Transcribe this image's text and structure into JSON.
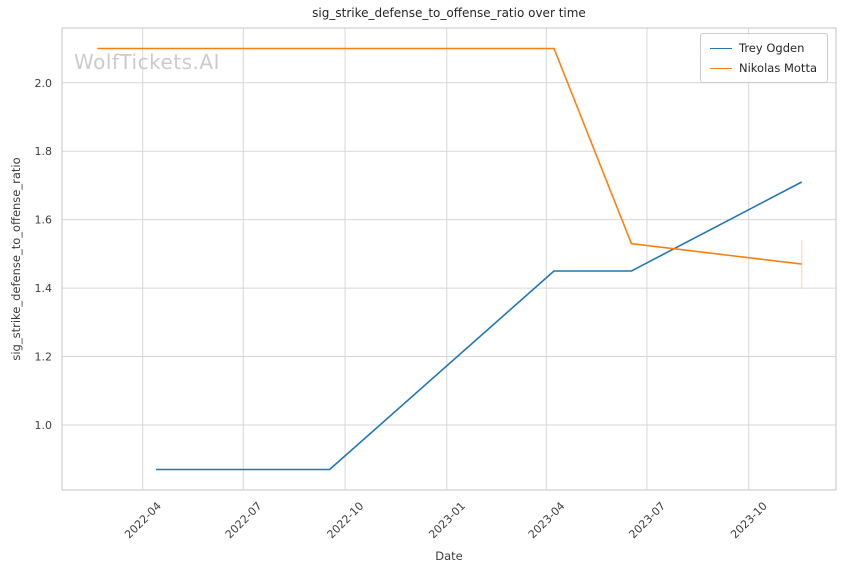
{
  "chart": {
    "title": "sig_strike_defense_to_offense_ratio over time",
    "xlabel": "Date",
    "ylabel": "sig_strike_defense_to_offense_ratio",
    "watermark": "WolfTickets.AI"
  },
  "chart_data": {
    "type": "line",
    "title": "sig_strike_defense_to_offense_ratio over time",
    "xlabel": "Date",
    "ylabel": "sig_strike_defense_to_offense_ratio",
    "grid": true,
    "legend_position": "upper right",
    "x_tick_labels": [
      "2022-04",
      "2022-07",
      "2022-10",
      "2023-01",
      "2023-04",
      "2023-07",
      "2023-10"
    ],
    "x_tick_dates": [
      "2022-04-01",
      "2022-07-01",
      "2022-10-01",
      "2023-01-01",
      "2023-04-01",
      "2023-07-01",
      "2023-10-01"
    ],
    "y_ticks": [
      1.0,
      1.2,
      1.4,
      1.6,
      1.8,
      2.0
    ],
    "y_tick_labels": [
      "1.0",
      "1.2",
      "1.4",
      "1.6",
      "1.8",
      "2.0"
    ],
    "xlim": [
      "2022-01-18",
      "2023-12-19"
    ],
    "ylim": [
      0.81,
      2.16
    ],
    "series": [
      {
        "name": "Trey Ogden",
        "color": "#1f77b4",
        "points": [
          [
            "2022-04-13",
            0.87
          ],
          [
            "2022-09-17",
            0.87
          ],
          [
            "2023-04-08",
            1.45
          ],
          [
            "2023-06-17",
            1.45
          ],
          [
            "2023-11-18",
            1.71
          ]
        ]
      },
      {
        "name": "Nikolas Motta",
        "color": "#ff7f0e",
        "points": [
          [
            "2022-02-19",
            2.1
          ],
          [
            "2023-04-08",
            2.1
          ],
          [
            "2023-06-17",
            1.53
          ],
          [
            "2023-11-18",
            1.47
          ]
        ],
        "last_point_error_bar": {
          "low": 1.4,
          "high": 1.54,
          "color": "rgba(255,127,14,0.25)"
        }
      }
    ],
    "colors": {
      "grid": "#d7d7d7",
      "spine": "#c6c6c6",
      "tick_text": "#3d3d3d",
      "title_text": "#262626",
      "watermark": "#cbcbcb",
      "background": "#ffffff"
    }
  }
}
